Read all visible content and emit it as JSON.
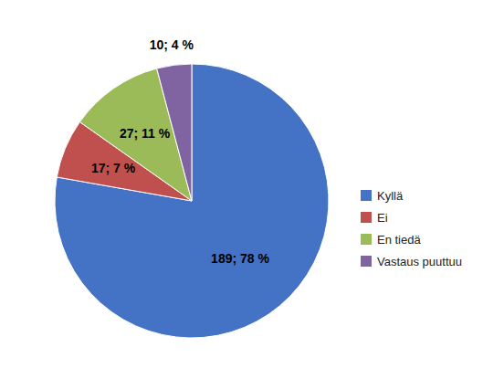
{
  "chart_data": {
    "type": "pie",
    "categories": [
      "Kyllä",
      "Ei",
      "En tiedä",
      "Vastaus puuttuu"
    ],
    "values": [
      189,
      17,
      27,
      10
    ],
    "value_labels": [
      "189; 78 %",
      "17; 7 %",
      "27; 11 %",
      "10; 4 %"
    ],
    "colors": [
      "#4472C4",
      "#C0504D",
      "#9BBB59",
      "#8064A2"
    ],
    "data_labels": true,
    "legend": "right"
  }
}
